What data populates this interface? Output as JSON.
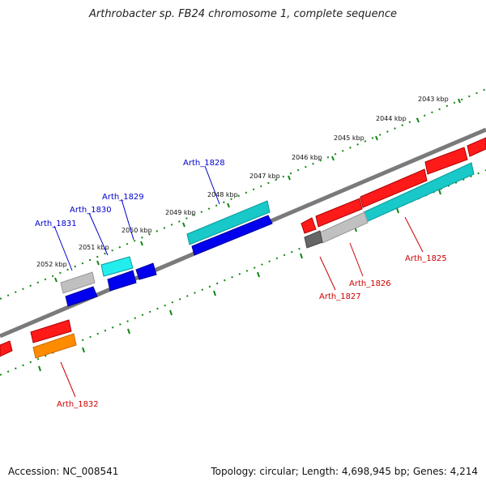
{
  "title": "Arthrobacter sp. FB24 chromosome 1, complete sequence",
  "accession": "Accession: NC_008541",
  "footer_info": "Topology: circular; Length: 4,698,945 bp; Genes: 4,214",
  "colors": {
    "forward_gene": "#ff0000",
    "reverse_gene": "#0000ee",
    "rna": "#00cccc",
    "pseudo": "#c0c0c0",
    "other": "#ff8c00",
    "backbone": "#888888",
    "ticks": "#118811",
    "label_forward": "#cc0000",
    "label_reverse": "#0000cc"
  },
  "ticks": [
    {
      "label": "2043 kbp"
    },
    {
      "label": "2044 kbp"
    },
    {
      "label": "2045 kbp"
    },
    {
      "label": "2046 kbp"
    },
    {
      "label": "2047 kbp"
    },
    {
      "label": "2048 kbp"
    },
    {
      "label": "2049 kbp"
    },
    {
      "label": "2050 kbp"
    },
    {
      "label": "2051 kbp"
    },
    {
      "label": "2052 kbp"
    }
  ],
  "gene_labels": [
    {
      "text": "Arth_1828",
      "strand": "reverse"
    },
    {
      "text": "Arth_1829",
      "strand": "reverse"
    },
    {
      "text": "Arth_1830",
      "strand": "reverse"
    },
    {
      "text": "Arth_1831",
      "strand": "reverse"
    },
    {
      "text": "Arth_1825",
      "strand": "forward"
    },
    {
      "text": "Arth_1826",
      "strand": "forward"
    },
    {
      "text": "Arth_1827",
      "strand": "forward"
    },
    {
      "text": "Arth_1832",
      "strand": "forward"
    }
  ]
}
